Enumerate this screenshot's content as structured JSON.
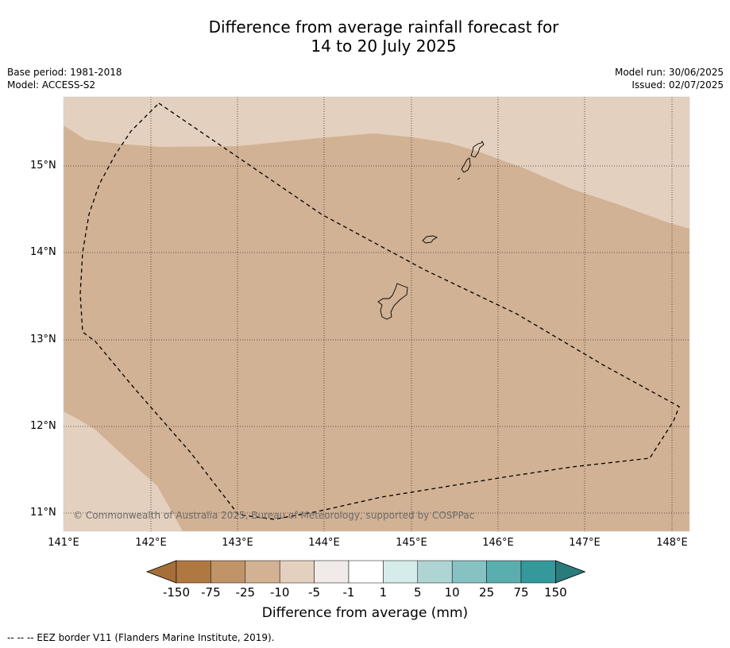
{
  "title_line1": "Difference from average rainfall forecast for",
  "title_line2": "14 to 20 July 2025",
  "meta_left": {
    "base_period": "Base period: 1981-2018",
    "model": "Model: ACCESS-S2"
  },
  "meta_right": {
    "model_run": "Model run: 30/06/2025",
    "issued": "Issued: 02/07/2025"
  },
  "copyright": "© Commonwealth of Australia 2025, Bureau of Meteorology, supported by COSPPac",
  "lat_labels": [
    "15°N",
    "14°N",
    "13°N",
    "12°N",
    "11°N"
  ],
  "lon_labels": [
    "141°E",
    "142°E",
    "143°E",
    "144°E",
    "145°E",
    "146°E",
    "147°E",
    "148°E"
  ],
  "colorbar": {
    "title": "Difference from average (mm)",
    "ticks": [
      "-150",
      "-75",
      "-25",
      "-10",
      "-5",
      "-1",
      "1",
      "5",
      "10",
      "25",
      "75",
      "150"
    ],
    "colors": [
      "#a66f3a",
      "#b07841",
      "#c19468",
      "#d2b293",
      "#e4d0be",
      "#f0ebe8",
      "#ffffff",
      "#d5eceb",
      "#aed5d3",
      "#86c2c1",
      "#5baeae",
      "#33999a",
      "#2a7b7b"
    ]
  },
  "footnote": "--  --  -- EEZ border V11 (Flanders Marine Institute, 2019).",
  "map_fill_colors": {
    "main": "#d2b294",
    "light": "#e4d0be"
  }
}
